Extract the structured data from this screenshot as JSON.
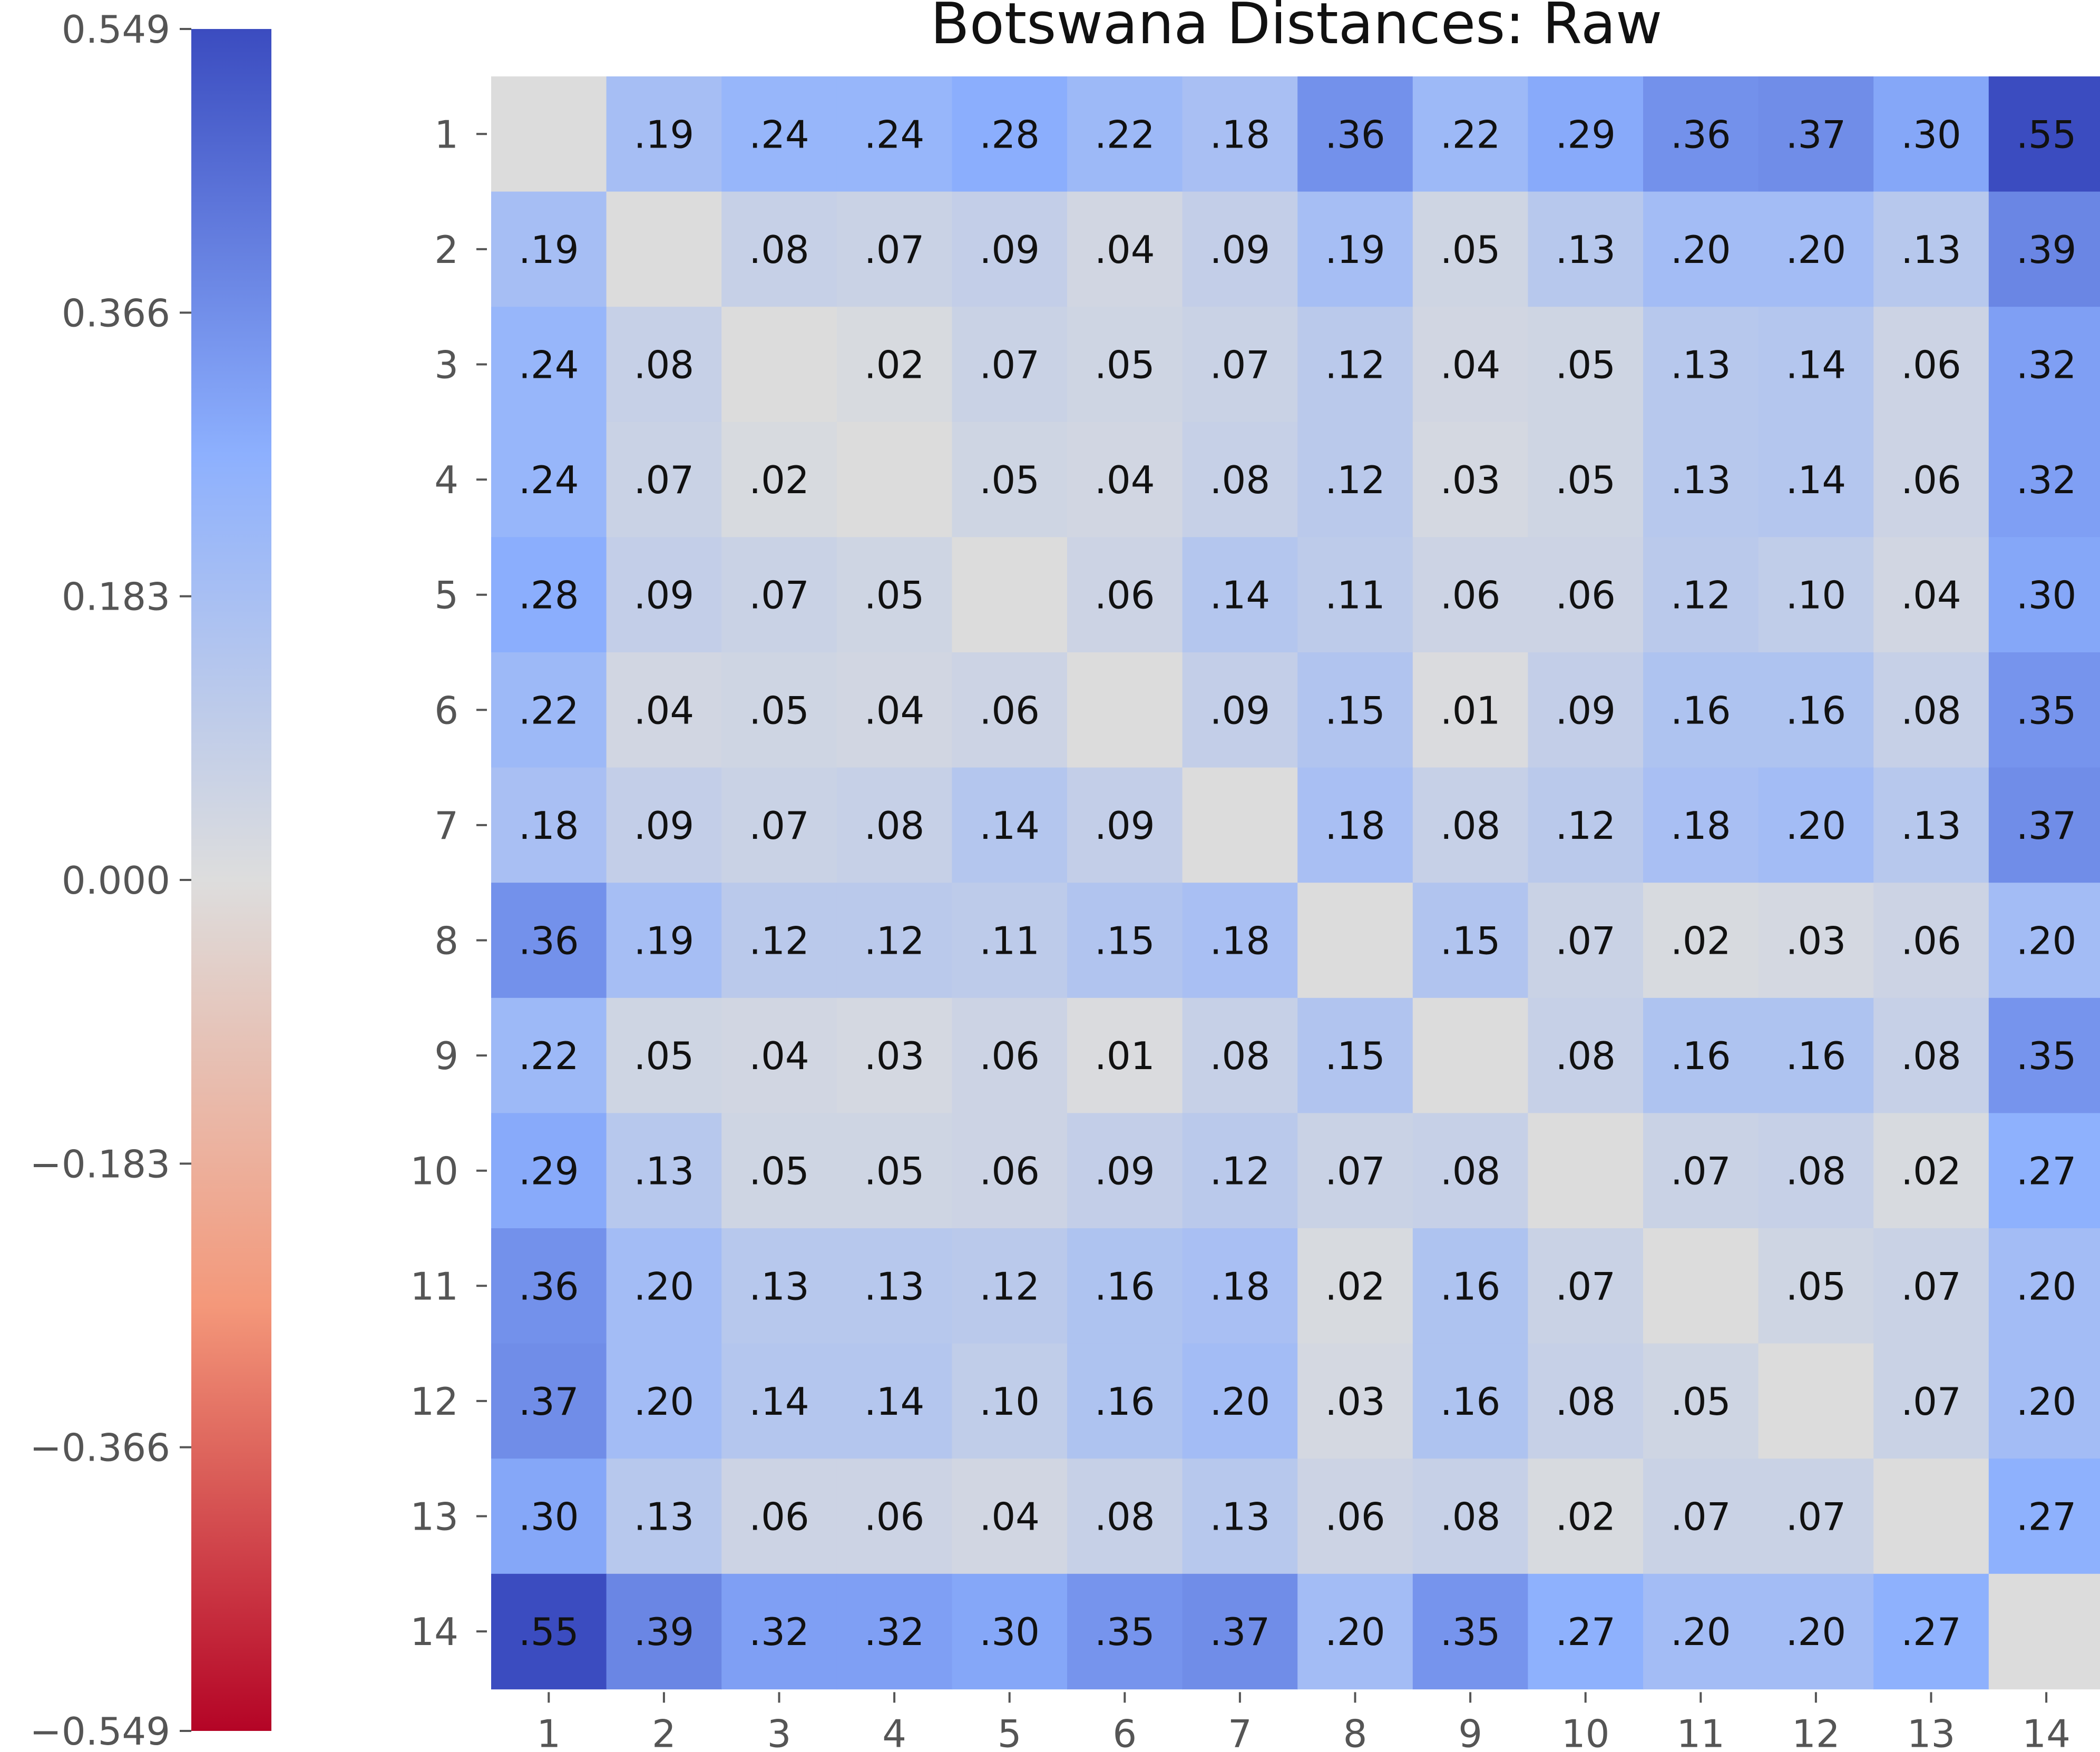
{
  "chart_data": {
    "type": "heatmap",
    "title": "Botswana Distances: Raw",
    "row_labels": [
      "1",
      "2",
      "3",
      "4",
      "5",
      "6",
      "7",
      "8",
      "9",
      "10",
      "11",
      "12",
      "13",
      "14"
    ],
    "col_labels": [
      "1",
      "2",
      "3",
      "4",
      "5",
      "6",
      "7",
      "8",
      "9",
      "10",
      "11",
      "12",
      "13",
      "14"
    ],
    "values": [
      [
        null,
        0.19,
        0.24,
        0.24,
        0.28,
        0.22,
        0.18,
        0.36,
        0.22,
        0.29,
        0.36,
        0.37,
        0.3,
        0.55
      ],
      [
        0.19,
        null,
        0.08,
        0.07,
        0.09,
        0.04,
        0.09,
        0.19,
        0.05,
        0.13,
        0.2,
        0.2,
        0.13,
        0.39
      ],
      [
        0.24,
        0.08,
        null,
        0.02,
        0.07,
        0.05,
        0.07,
        0.12,
        0.04,
        0.05,
        0.13,
        0.14,
        0.06,
        0.32
      ],
      [
        0.24,
        0.07,
        0.02,
        null,
        0.05,
        0.04,
        0.08,
        0.12,
        0.03,
        0.05,
        0.13,
        0.14,
        0.06,
        0.32
      ],
      [
        0.28,
        0.09,
        0.07,
        0.05,
        null,
        0.06,
        0.14,
        0.11,
        0.06,
        0.06,
        0.12,
        0.1,
        0.04,
        0.3
      ],
      [
        0.22,
        0.04,
        0.05,
        0.04,
        0.06,
        null,
        0.09,
        0.15,
        0.01,
        0.09,
        0.16,
        0.16,
        0.08,
        0.35
      ],
      [
        0.18,
        0.09,
        0.07,
        0.08,
        0.14,
        0.09,
        null,
        0.18,
        0.08,
        0.12,
        0.18,
        0.2,
        0.13,
        0.37
      ],
      [
        0.36,
        0.19,
        0.12,
        0.12,
        0.11,
        0.15,
        0.18,
        null,
        0.15,
        0.07,
        0.02,
        0.03,
        0.06,
        0.2
      ],
      [
        0.22,
        0.05,
        0.04,
        0.03,
        0.06,
        0.01,
        0.08,
        0.15,
        null,
        0.08,
        0.16,
        0.16,
        0.08,
        0.35
      ],
      [
        0.29,
        0.13,
        0.05,
        0.05,
        0.06,
        0.09,
        0.12,
        0.07,
        0.08,
        null,
        0.07,
        0.08,
        0.02,
        0.27
      ],
      [
        0.36,
        0.2,
        0.13,
        0.13,
        0.12,
        0.16,
        0.18,
        0.02,
        0.16,
        0.07,
        null,
        0.05,
        0.07,
        0.2
      ],
      [
        0.37,
        0.2,
        0.14,
        0.14,
        0.1,
        0.16,
        0.2,
        0.03,
        0.16,
        0.08,
        0.05,
        null,
        0.07,
        0.2
      ],
      [
        0.3,
        0.13,
        0.06,
        0.06,
        0.04,
        0.08,
        0.13,
        0.06,
        0.08,
        0.02,
        0.07,
        0.07,
        null,
        0.27
      ],
      [
        0.55,
        0.39,
        0.32,
        0.32,
        0.3,
        0.35,
        0.37,
        0.2,
        0.35,
        0.27,
        0.2,
        0.2,
        0.27,
        null
      ]
    ],
    "cell_labels": [
      [
        "",
        ".19",
        ".24",
        ".24",
        ".28",
        ".22",
        ".18",
        ".36",
        ".22",
        ".29",
        ".36",
        ".37",
        ".30",
        ".55"
      ],
      [
        ".19",
        "",
        ".08",
        ".07",
        ".09",
        ".04",
        ".09",
        ".19",
        ".05",
        ".13",
        ".20",
        ".20",
        ".13",
        ".39"
      ],
      [
        ".24",
        ".08",
        "",
        ".02",
        ".07",
        ".05",
        ".07",
        ".12",
        ".04",
        ".05",
        ".13",
        ".14",
        ".06",
        ".32"
      ],
      [
        ".24",
        ".07",
        ".02",
        "",
        ".05",
        ".04",
        ".08",
        ".12",
        ".03",
        ".05",
        ".13",
        ".14",
        ".06",
        ".32"
      ],
      [
        ".28",
        ".09",
        ".07",
        ".05",
        "",
        ".06",
        ".14",
        ".11",
        ".06",
        ".06",
        ".12",
        ".10",
        ".04",
        ".30"
      ],
      [
        ".22",
        ".04",
        ".05",
        ".04",
        ".06",
        "",
        ".09",
        ".15",
        ".01",
        ".09",
        ".16",
        ".16",
        ".08",
        ".35"
      ],
      [
        ".18",
        ".09",
        ".07",
        ".08",
        ".14",
        ".09",
        "",
        ".18",
        ".08",
        ".12",
        ".18",
        ".20",
        ".13",
        ".37"
      ],
      [
        ".36",
        ".19",
        ".12",
        ".12",
        ".11",
        ".15",
        ".18",
        "",
        ".15",
        ".07",
        ".02",
        ".03",
        ".06",
        ".20"
      ],
      [
        ".22",
        ".05",
        ".04",
        ".03",
        ".06",
        ".01",
        ".08",
        ".15",
        "",
        ".08",
        ".16",
        ".16",
        ".08",
        ".35"
      ],
      [
        ".29",
        ".13",
        ".05",
        ".05",
        ".06",
        ".09",
        ".12",
        ".07",
        ".08",
        "",
        ".07",
        ".08",
        ".02",
        ".27"
      ],
      [
        ".36",
        ".20",
        ".13",
        ".13",
        ".12",
        ".16",
        ".18",
        ".02",
        ".16",
        ".07",
        "",
        ".05",
        ".07",
        ".20"
      ],
      [
        ".37",
        ".20",
        ".14",
        ".14",
        ".10",
        ".16",
        ".20",
        ".03",
        ".16",
        ".08",
        ".05",
        "",
        ".07",
        ".20"
      ],
      [
        ".30",
        ".13",
        ".06",
        ".06",
        ".04",
        ".08",
        ".13",
        ".06",
        ".08",
        ".02",
        ".07",
        ".07",
        "",
        ".27"
      ],
      [
        ".55",
        ".39",
        ".32",
        ".32",
        ".30",
        ".35",
        ".37",
        ".20",
        ".35",
        ".27",
        ".20",
        ".20",
        ".27",
        ""
      ]
    ],
    "diagonal_color": "#dcdcdc",
    "colorbar": {
      "colormap": "coolwarm",
      "position": "left",
      "vmin": -0.549,
      "vmax": 0.549,
      "ticks": [
        0.549,
        0.366,
        0.183,
        0.0,
        -0.183,
        -0.366,
        -0.549
      ],
      "tick_labels": [
        "0.549",
        "0.366",
        "0.183",
        "0.000",
        "−0.183",
        "−0.366",
        "−0.549"
      ]
    }
  }
}
